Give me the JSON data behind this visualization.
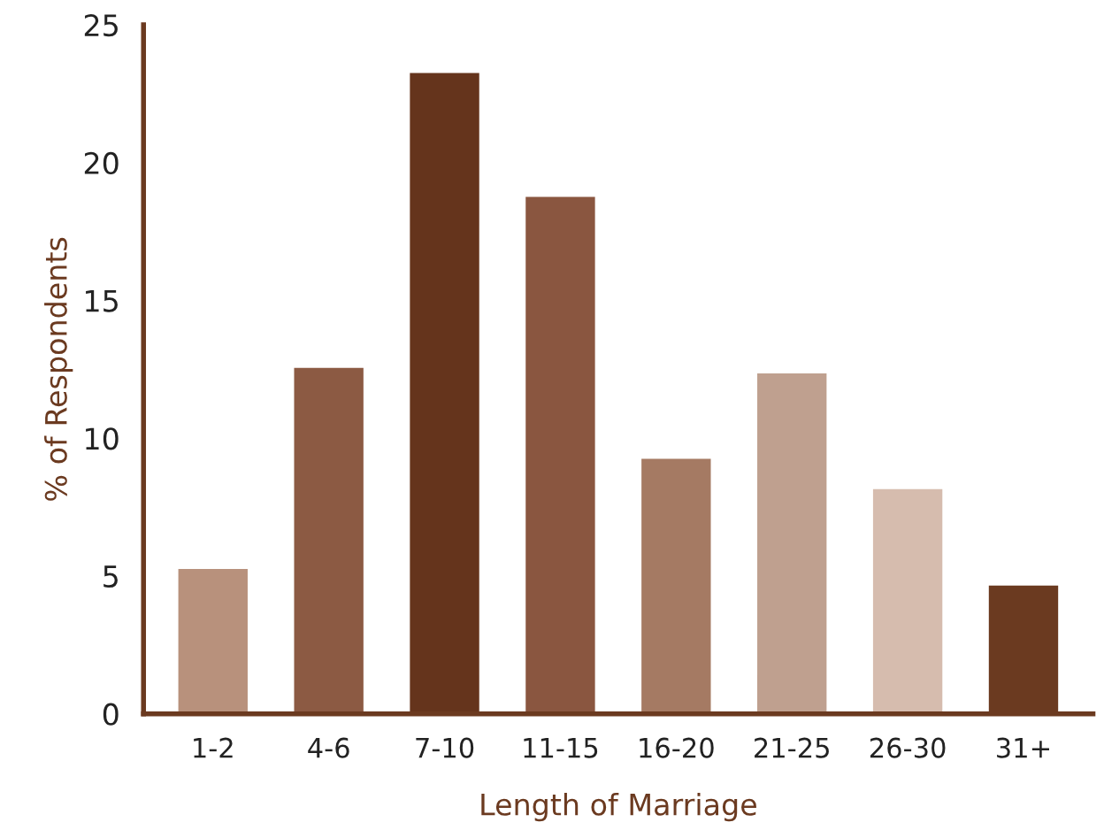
{
  "chart_data": {
    "type": "bar",
    "xlabel": "Length of Marriage",
    "ylabel": "% of Respondents",
    "categories": [
      "1-2",
      "4-6",
      "7-10",
      "11-15",
      "16-20",
      "21-25",
      "26-30",
      "31+"
    ],
    "values": [
      5.3,
      12.6,
      23.3,
      18.8,
      9.3,
      12.4,
      8.2,
      4.7
    ],
    "colors": [
      "#b8917c",
      "#8c5a43",
      "#65341c",
      "#8a5640",
      "#a57a63",
      "#bfa08f",
      "#d6bcae",
      "#6b3a20"
    ],
    "ylim": [
      0,
      25
    ],
    "yticks": [
      0,
      5,
      10,
      15,
      20,
      25
    ],
    "grid": false,
    "legend": false
  }
}
